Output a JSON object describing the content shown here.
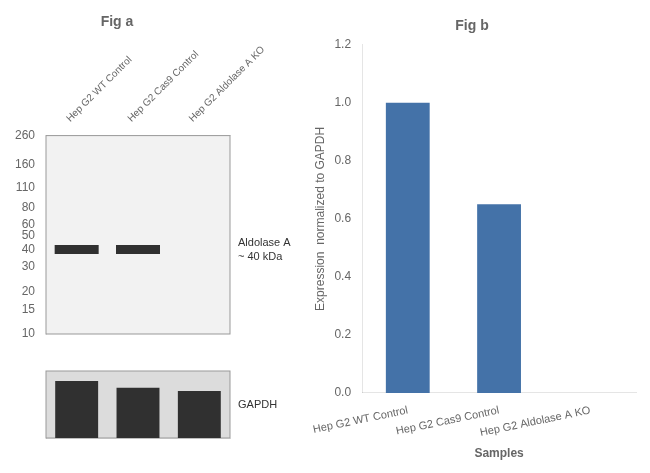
{
  "chart_data": [
    {
      "type": "blot",
      "title": "Fig a",
      "categories": [
        "Hep G2 WT Control",
        "Hep G2 Cas9 Control",
        "Hep G2 Aldolase A KO"
      ],
      "series": [
        {
          "name": "Aldolase A\n~ 40 kDa",
          "color": "#303030",
          "values": [
            40,
            40,
            null
          ]
        }
      ],
      "log": "y",
      "ylim": [
        10,
        260
      ],
      "yticks": [
        260,
        160,
        110,
        80,
        60,
        50,
        40,
        30,
        20,
        15,
        10
      ],
      "grid": false
    },
    {
      "type": "strip",
      "categories": [
        "Hep G2 WT Control",
        "Hep G2 Cas9 Control",
        "Hep G2 Aldolase A KO"
      ],
      "series": [
        {
          "name": "GAPDH",
          "color": "#303030",
          "values": [
            0.85,
            0.75,
            0.7
          ]
        }
      ],
      "ylim": [
        0,
        1
      ],
      "tick_labels": false,
      "grid": false
    },
    {
      "type": "bar",
      "title": "Fig b",
      "categories": [
        "Hep G2 WT Control",
        "Hep G2 Cas9 Control",
        "Hep G2 Aldolase A KO"
      ],
      "values": [
        1.0,
        0.65,
        0.0
      ],
      "color": "#4472a8",
      "xlabel": "Samples",
      "ylabel": "Expression  normalized to GAPDH",
      "ylim": [
        0,
        1.2
      ],
      "yticks": [
        {
          "value": 0,
          "label": "0.0"
        },
        0.2,
        0.4,
        0.6,
        0.8,
        {
          "value": 1,
          "label": "1.0"
        },
        1.2
      ],
      "grid": false
    }
  ]
}
